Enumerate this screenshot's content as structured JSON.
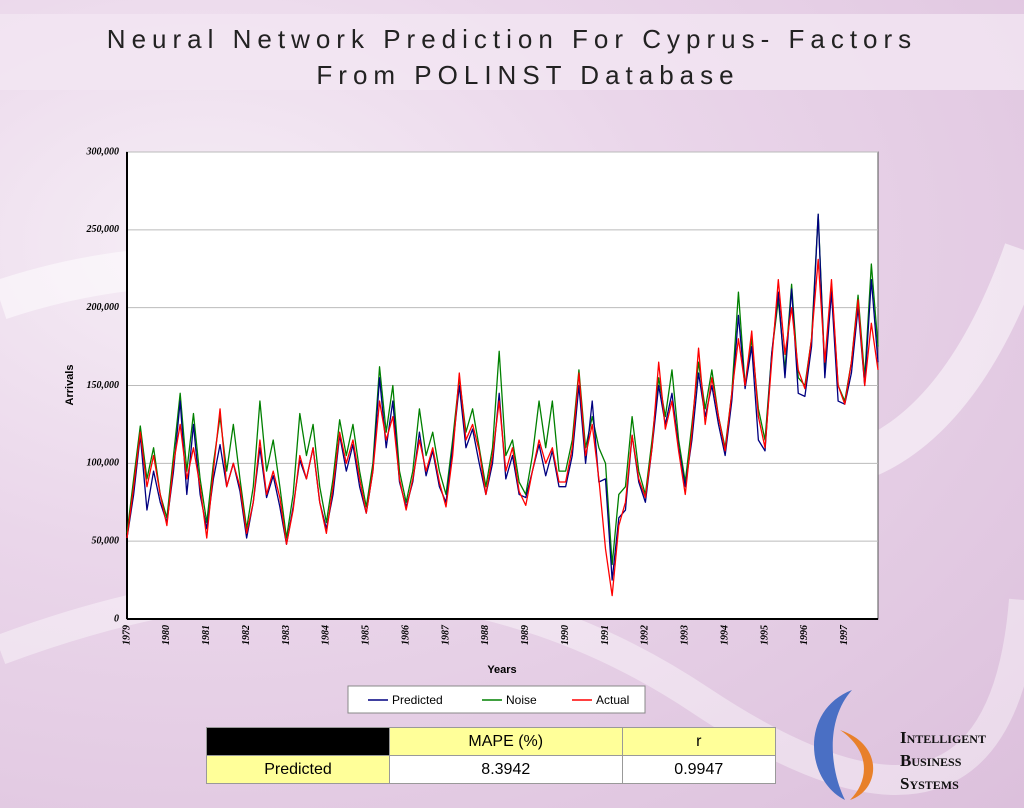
{
  "header": {
    "title_lines": [
      "Neural Network Prediction For Cyprus- Factors",
      "From POLINST Database"
    ]
  },
  "chart_data": {
    "type": "line",
    "categories": [
      "1979",
      null,
      null,
      null,
      null,
      null,
      "1980",
      null,
      null,
      null,
      null,
      null,
      "1981",
      null,
      null,
      null,
      null,
      null,
      "1982",
      null,
      null,
      null,
      null,
      null,
      "1983",
      null,
      null,
      null,
      null,
      null,
      "1984",
      null,
      null,
      null,
      null,
      null,
      "1985",
      null,
      null,
      null,
      null,
      null,
      "1986",
      null,
      null,
      null,
      null,
      null,
      "1987",
      null,
      null,
      null,
      null,
      null,
      "1988",
      null,
      null,
      null,
      null,
      null,
      "1989",
      null,
      null,
      null,
      null,
      null,
      "1990",
      null,
      null,
      null,
      null,
      null,
      "1991",
      null,
      null,
      null,
      null,
      null,
      "1992",
      null,
      null,
      null,
      null,
      null,
      "1993",
      null,
      null,
      null,
      null,
      null,
      "1994",
      null,
      null,
      null,
      null,
      null,
      "1995",
      null,
      null,
      null,
      null,
      null,
      "1996",
      null,
      null,
      null,
      null,
      null,
      "1997",
      null,
      null,
      null,
      null,
      null
    ],
    "series": [
      {
        "name": "Predicted",
        "color": "#000080",
        "values": [
          52000,
          80000,
          118000,
          70000,
          95000,
          75000,
          62000,
          95000,
          140000,
          80000,
          125000,
          80000,
          58000,
          90000,
          112000,
          85000,
          100000,
          82000,
          52000,
          75000,
          110000,
          78000,
          92000,
          72000,
          48000,
          72000,
          102000,
          90000,
          110000,
          75000,
          58000,
          80000,
          118000,
          95000,
          112000,
          85000,
          68000,
          95000,
          155000,
          110000,
          140000,
          88000,
          72000,
          88000,
          120000,
          92000,
          108000,
          85000,
          75000,
          110000,
          150000,
          110000,
          122000,
          100000,
          80000,
          100000,
          145000,
          90000,
          105000,
          80000,
          78000,
          95000,
          112000,
          92000,
          108000,
          85000,
          85000,
          105000,
          150000,
          100000,
          140000,
          88000,
          90000,
          25000,
          65000,
          70000,
          118000,
          88000,
          75000,
          110000,
          150000,
          125000,
          145000,
          110000,
          85000,
          115000,
          158000,
          130000,
          150000,
          125000,
          105000,
          140000,
          195000,
          148000,
          175000,
          115000,
          108000,
          170000,
          210000,
          155000,
          212000,
          145000,
          143000,
          175000,
          260000,
          155000,
          210000,
          140000,
          138000,
          158000,
          200000,
          150000,
          218000,
          165000
        ]
      },
      {
        "name": "Noise",
        "color": "#008000",
        "values": [
          55000,
          90000,
          124000,
          90000,
          110000,
          80000,
          65000,
          105000,
          145000,
          95000,
          132000,
          90000,
          62000,
          100000,
          130000,
          95000,
          125000,
          90000,
          58000,
          85000,
          140000,
          95000,
          115000,
          85000,
          52000,
          80000,
          132000,
          105000,
          125000,
          85000,
          62000,
          90000,
          128000,
          105000,
          125000,
          95000,
          72000,
          100000,
          162000,
          120000,
          150000,
          95000,
          75000,
          95000,
          135000,
          105000,
          120000,
          95000,
          80000,
          115000,
          155000,
          120000,
          135000,
          110000,
          85000,
          110000,
          172000,
          105000,
          115000,
          88000,
          80000,
          105000,
          140000,
          110000,
          140000,
          95000,
          95000,
          115000,
          160000,
          110000,
          130000,
          110000,
          100000,
          35000,
          80000,
          85000,
          130000,
          95000,
          80000,
          115000,
          155000,
          130000,
          160000,
          115000,
          88000,
          125000,
          165000,
          135000,
          160000,
          130000,
          110000,
          145000,
          210000,
          150000,
          180000,
          135000,
          115000,
          170000,
          205000,
          160000,
          215000,
          155000,
          150000,
          180000,
          260000,
          160000,
          215000,
          150000,
          140000,
          165000,
          208000,
          155000,
          228000,
          175000
        ]
      },
      {
        "name": "Actual",
        "color": "#ff0000",
        "values": [
          52000,
          85000,
          120000,
          85000,
          105000,
          80000,
          60000,
          100000,
          125000,
          90000,
          110000,
          85000,
          52000,
          95000,
          135000,
          85000,
          100000,
          85000,
          55000,
          75000,
          115000,
          80000,
          95000,
          78000,
          48000,
          70000,
          105000,
          90000,
          110000,
          75000,
          55000,
          85000,
          120000,
          100000,
          115000,
          90000,
          68000,
          95000,
          140000,
          115000,
          130000,
          90000,
          70000,
          90000,
          115000,
          95000,
          110000,
          88000,
          72000,
          105000,
          158000,
          115000,
          125000,
          108000,
          80000,
          105000,
          140000,
          95000,
          110000,
          82000,
          73000,
          95000,
          115000,
          100000,
          110000,
          88000,
          88000,
          110000,
          158000,
          105000,
          125000,
          90000,
          45000,
          15000,
          60000,
          75000,
          118000,
          90000,
          78000,
          110000,
          165000,
          122000,
          140000,
          108000,
          80000,
          120000,
          174000,
          125000,
          155000,
          130000,
          108000,
          145000,
          180000,
          150000,
          185000,
          130000,
          110000,
          165000,
          218000,
          170000,
          200000,
          160000,
          148000,
          180000,
          231000,
          165000,
          218000,
          150000,
          138000,
          165000,
          205000,
          150000,
          190000,
          160000
        ]
      }
    ],
    "ylim": [
      0,
      300000
    ],
    "yticks": [
      0,
      {
        "value": 50000,
        "label": "50,000"
      },
      {
        "value": 100000,
        "label": "100,000"
      },
      {
        "value": 150000,
        "label": "150,000"
      },
      {
        "value": 200000,
        "label": "200,000"
      },
      {
        "value": 250000,
        "label": "250,000"
      },
      {
        "value": 300000,
        "label": "300,000"
      }
    ],
    "y_label": "Arrivals",
    "x_label": "Years",
    "grid": true
  },
  "table": {
    "header": [
      "MAPE (%)",
      "r"
    ],
    "rows": [
      [
        "Predicted",
        "8.3942",
        "0.9947"
      ]
    ]
  },
  "logo": {
    "lines": [
      "Intelligent",
      "Business",
      "Systems"
    ]
  }
}
